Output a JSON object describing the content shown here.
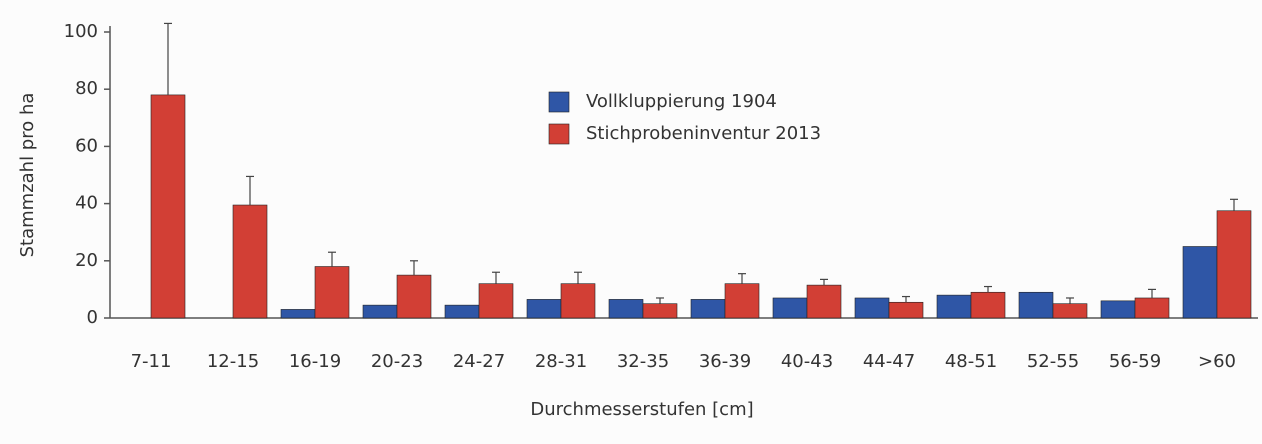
{
  "chart_data": {
    "type": "bar",
    "x_label": "Durchmesserstufen [cm]",
    "y_label": "Stammzahl pro ha",
    "categories": [
      "7-11",
      "12-15",
      "16-19",
      "20-23",
      "24-27",
      "28-31",
      "32-35",
      "36-39",
      "40-43",
      "44-47",
      "48-51",
      "52-55",
      "56-59",
      ">60"
    ],
    "series": [
      {
        "name": "Vollkluppierung 1904",
        "color": "#2f56a6",
        "values": [
          0,
          0,
          3,
          4.5,
          4.5,
          6.5,
          6.5,
          6.5,
          7,
          7,
          8,
          9,
          6,
          25
        ]
      },
      {
        "name": "Stichprobeninventur 2013",
        "color": "#d23f35",
        "values": [
          78,
          39.5,
          18,
          15,
          12,
          12,
          5,
          12,
          11.5,
          5.5,
          9,
          5,
          7,
          37.5
        ],
        "errors": [
          25,
          10,
          5,
          5,
          4,
          4,
          2,
          3.5,
          2,
          2,
          2,
          2,
          3,
          4
        ]
      }
    ],
    "ylim": [
      0,
      100
    ],
    "yticks": [
      0,
      20,
      40,
      60,
      80,
      100
    ],
    "grid": false
  }
}
